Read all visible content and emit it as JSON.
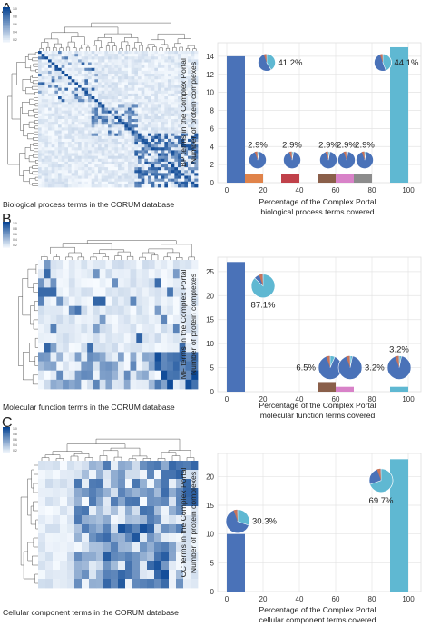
{
  "figure": {
    "panels": [
      {
        "letter": "A",
        "heatmap_caption": "Biological process terms in the CORUM database",
        "colorbar_ticks": [
          "1.0",
          "0.8",
          "0.6",
          "0.4",
          "0.2"
        ],
        "ylabel_lines": [
          "BP terms in the Complex Portal",
          "Number of protein complexes"
        ],
        "xlabel_lines": [
          "Percentage of the Complex Portal",
          "biological process terms covered"
        ]
      },
      {
        "letter": "B",
        "heatmap_caption": "Molecular function terms in the CORUM database",
        "colorbar_ticks": [
          "1.0",
          "0.8",
          "0.6",
          "0.4",
          "0.2"
        ],
        "ylabel_lines": [
          "MF terms in the Complex Portal",
          "Number of protein complexes"
        ],
        "xlabel_lines": [
          "Percentage of the Complex Portal",
          "molecular function terms covered"
        ]
      },
      {
        "letter": "C",
        "heatmap_caption": "Cellular component terms in the CORUM database",
        "colorbar_ticks": [
          "1.0",
          "0.8",
          "0.6",
          "0.4",
          "0.2"
        ],
        "ylabel_lines": [
          "CC terms in the Complex Portal",
          "Number of protein complexes"
        ],
        "xlabel_lines": [
          "Percentage of the Complex Portal",
          "cellular component terms covered"
        ]
      }
    ]
  },
  "chart_data": [
    {
      "type": "bar",
      "panel": "A",
      "title": "",
      "xlabel": "Percentage of the Complex Portal biological process terms covered",
      "ylabel": "BP terms in the Complex Portal Number of protein complexes",
      "xlim": [
        -5,
        107
      ],
      "ylim": [
        0,
        15.5
      ],
      "xticks": [
        0,
        20,
        40,
        60,
        80,
        100
      ],
      "yticks": [
        0,
        2,
        4,
        6,
        8,
        10,
        12,
        14
      ],
      "grid": true,
      "bars": [
        {
          "x": 5,
          "value": 14,
          "color": "#4a72b8"
        },
        {
          "x": 15,
          "value": 1,
          "color": "#e0834a"
        },
        {
          "x": 35,
          "value": 1,
          "color": "#c0414a"
        },
        {
          "x": 55,
          "value": 1,
          "color": "#8a5f4a"
        },
        {
          "x": 65,
          "value": 1,
          "color": "#d882c8"
        },
        {
          "x": 75,
          "value": 1,
          "color": "#8c8c8c"
        },
        {
          "x": 95,
          "value": 15,
          "color": "#5fb8d2"
        }
      ],
      "pie_annotations": [
        {
          "label": "41.2%",
          "x": 22,
          "y": 13.3,
          "fraction": 0.412
        },
        {
          "label": "44.1%",
          "x": 86,
          "y": 13.3,
          "fraction": 0.441
        },
        {
          "label": "2.9%",
          "x": 17,
          "y": 2.5,
          "fraction": 0.029
        },
        {
          "label": "2.9%",
          "x": 36,
          "y": 2.5,
          "fraction": 0.029
        },
        {
          "label": "2.9%",
          "x": 56,
          "y": 2.5,
          "fraction": 0.029
        },
        {
          "label": "2.9%",
          "x": 66,
          "y": 2.5,
          "fraction": 0.029
        },
        {
          "label": "2.9%",
          "x": 76,
          "y": 2.5,
          "fraction": 0.029
        }
      ]
    },
    {
      "type": "bar",
      "panel": "B",
      "title": "",
      "xlabel": "Percentage of the Complex Portal molecular function terms covered",
      "ylabel": "MF terms in the Complex Portal Number of protein complexes",
      "xlim": [
        -5,
        107
      ],
      "ylim": [
        0,
        28
      ],
      "xticks": [
        0,
        20,
        40,
        60,
        80,
        100
      ],
      "yticks": [
        0,
        5,
        10,
        15,
        20,
        25
      ],
      "grid": true,
      "bars": [
        {
          "x": 5,
          "value": 27,
          "color": "#4a72b8"
        },
        {
          "x": 55,
          "value": 2,
          "color": "#8a5f4a"
        },
        {
          "x": 65,
          "value": 1,
          "color": "#d882c8"
        },
        {
          "x": 95,
          "value": 1,
          "color": "#5fb8d2"
        }
      ],
      "pie_annotations": [
        {
          "label": "87.1%",
          "x": 20,
          "y": 22,
          "fraction": 0.871
        },
        {
          "label": "6.5%",
          "x": 57,
          "y": 5,
          "fraction": 0.065
        },
        {
          "label": "3.2%",
          "x": 68,
          "y": 5,
          "fraction": 0.032
        },
        {
          "label": "3.2%",
          "x": 95,
          "y": 5,
          "fraction": 0.032
        }
      ]
    },
    {
      "type": "bar",
      "panel": "C",
      "title": "",
      "xlabel": "Percentage of the Complex Portal cellular component terms covered",
      "ylabel": "CC terms in the Complex Portal Number of protein complexes",
      "xlim": [
        -5,
        107
      ],
      "ylim": [
        0,
        24
      ],
      "xticks": [
        0,
        20,
        40,
        60,
        80,
        100
      ],
      "yticks": [
        0,
        5,
        10,
        15,
        20
      ],
      "grid": true,
      "bars": [
        {
          "x": 5,
          "value": 10,
          "color": "#4a72b8"
        },
        {
          "x": 95,
          "value": 23,
          "color": "#5fb8d2"
        }
      ],
      "pie_annotations": [
        {
          "label": "30.3%",
          "x": 6,
          "y": 12.2,
          "fraction": 0.303
        },
        {
          "label": "69.7%",
          "x": 85,
          "y": 19.3,
          "fraction": 0.697
        }
      ]
    }
  ]
}
